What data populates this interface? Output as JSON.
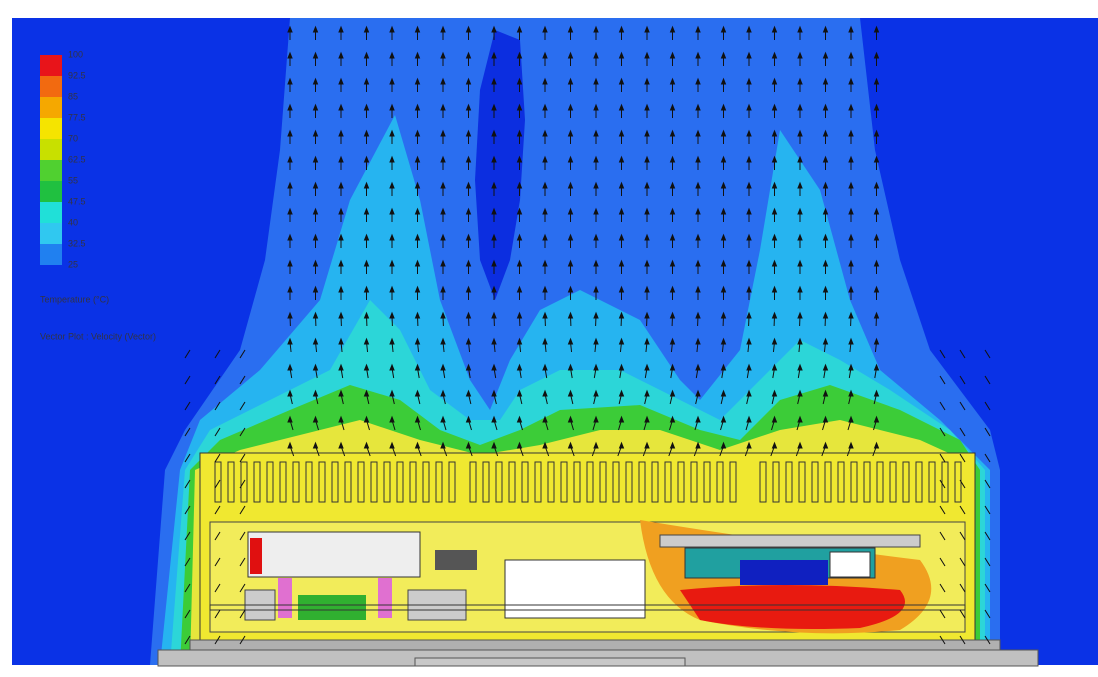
{
  "legend": {
    "labels": [
      100,
      92.5,
      85,
      77.5,
      70,
      62.5,
      55,
      47.5,
      40,
      32.5,
      25
    ],
    "colors": [
      "#e8141a",
      "#f26a10",
      "#f5a800",
      "#f5e400",
      "#c8e000",
      "#50d030",
      "#20c040",
      "#20e0d8",
      "#30c8f0",
      "#2080f0"
    ],
    "title": "Temperature (°C)",
    "subtitle": "Vector Plot : Velocity (Vector)"
  }
}
